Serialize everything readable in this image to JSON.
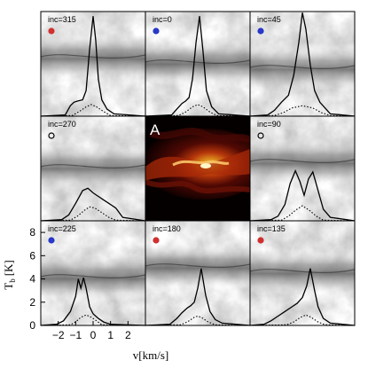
{
  "figure": {
    "center_panel_label": "A",
    "xlabel": "v[km/s]",
    "ylabel_main": "T",
    "ylabel_sub": "b",
    "ylabel_unit": "[K]"
  },
  "chart_data": {
    "type": "line",
    "grid": "3x3 panels of simulated spectra overlaid on column-density maps; center panel is a color map",
    "x_axis": {
      "label": "v[km/s]",
      "range": [
        -3,
        3
      ],
      "ticks": [
        -2,
        -1,
        0,
        1,
        2
      ]
    },
    "y_axis": {
      "label": "T_b [K]",
      "range": [
        0,
        9
      ],
      "ticks": [
        0,
        2,
        4,
        6,
        8
      ]
    },
    "marker_colors": {
      "red": "#d03030",
      "blue": "#2838c8",
      "open": "#000000"
    },
    "panels": [
      {
        "label": "inc=315",
        "row": 0,
        "col": 0,
        "marker": "red",
        "solid": {
          "v": [
            -3,
            -1.6,
            -1.3,
            -1.1,
            -0.9,
            -0.6,
            -0.4,
            -0.2,
            0.0,
            0.15,
            0.3,
            0.5,
            0.8,
            1.2,
            3
          ],
          "T": [
            0,
            0.1,
            0.9,
            1.2,
            1.3,
            1.4,
            2.2,
            5.8,
            8.6,
            6.5,
            3.2,
            1.4,
            0.6,
            0.2,
            0
          ]
        },
        "dotted": {
          "v": [
            -3,
            -1.2,
            -0.8,
            -0.4,
            -0.1,
            0.2,
            0.6,
            1.0,
            3
          ],
          "T": [
            0,
            0.05,
            0.4,
            0.8,
            1.0,
            0.8,
            0.4,
            0.05,
            0
          ]
        }
      },
      {
        "label": "inc=0",
        "row": 0,
        "col": 1,
        "marker": "blue",
        "solid": {
          "v": [
            -3,
            -1.5,
            -1.2,
            -0.9,
            -0.7,
            -0.5,
            -0.3,
            -0.1,
            0.1,
            0.3,
            0.5,
            0.8,
            1.2,
            3
          ],
          "T": [
            0,
            0.1,
            0.6,
            1.1,
            1.3,
            1.6,
            3.2,
            6.3,
            8.6,
            5.6,
            2.2,
            0.8,
            0.2,
            0
          ]
        },
        "dotted": {
          "v": [
            -3,
            -1.1,
            -0.7,
            -0.3,
            0.0,
            0.3,
            0.7,
            1.1,
            3
          ],
          "T": [
            0,
            0.05,
            0.35,
            0.8,
            1.0,
            0.8,
            0.35,
            0.05,
            0
          ]
        }
      },
      {
        "label": "inc=45",
        "row": 0,
        "col": 2,
        "marker": "blue",
        "solid": {
          "v": [
            -3,
            -2.0,
            -1.6,
            -1.2,
            -0.8,
            -0.5,
            -0.2,
            0.0,
            0.2,
            0.45,
            0.7,
            1.0,
            1.3,
            1.6,
            3
          ],
          "T": [
            0,
            0.1,
            0.5,
            1.2,
            1.8,
            3.5,
            6.4,
            8.9,
            7.5,
            4.4,
            2.2,
            1.2,
            0.7,
            0.2,
            0
          ]
        },
        "dotted": {
          "v": [
            -3,
            -1.6,
            -1.1,
            -0.6,
            0.0,
            0.6,
            1.1,
            1.6,
            3
          ],
          "T": [
            0,
            0.05,
            0.3,
            0.7,
            0.9,
            0.7,
            0.3,
            0.05,
            0
          ]
        }
      },
      {
        "label": "inc=270",
        "row": 1,
        "col": 0,
        "marker": "open",
        "solid": {
          "v": [
            -3,
            -1.8,
            -1.4,
            -1.0,
            -0.6,
            -0.3,
            0.0,
            0.3,
            0.6,
            0.9,
            1.3,
            1.7,
            3
          ],
          "T": [
            0,
            0.1,
            0.5,
            1.5,
            2.6,
            2.8,
            2.4,
            2.1,
            1.8,
            1.5,
            1.1,
            0.3,
            0
          ]
        },
        "dotted": {
          "v": [
            -3,
            -1.3,
            -0.9,
            -0.5,
            -0.2,
            0.1,
            0.5,
            0.9,
            1.3,
            3
          ],
          "T": [
            0,
            0.05,
            0.4,
            0.9,
            1.2,
            1.1,
            0.7,
            0.3,
            0.05,
            0
          ]
        }
      },
      {
        "label": "inc=90",
        "row": 1,
        "col": 2,
        "marker": "open",
        "solid": {
          "v": [
            -3,
            -1.8,
            -1.4,
            -1.0,
            -0.7,
            -0.4,
            -0.15,
            0.1,
            0.35,
            0.6,
            0.9,
            1.2,
            1.6,
            3
          ],
          "T": [
            0,
            0.1,
            0.4,
            1.4,
            3.2,
            4.3,
            3.4,
            2.2,
            3.6,
            4.2,
            2.6,
            1.0,
            0.3,
            0
          ]
        },
        "dotted": {
          "v": [
            -3,
            -1.2,
            -0.8,
            -0.4,
            0.0,
            0.4,
            0.8,
            1.2,
            3
          ],
          "T": [
            0,
            0.05,
            0.4,
            0.9,
            1.3,
            0.9,
            0.4,
            0.05,
            0
          ]
        }
      },
      {
        "label": "inc=225",
        "row": 2,
        "col": 0,
        "marker": "blue",
        "solid": {
          "v": [
            -3,
            -2.1,
            -1.7,
            -1.3,
            -1.0,
            -0.85,
            -0.7,
            -0.55,
            -0.4,
            -0.2,
            0.0,
            0.3,
            0.6,
            1.0,
            3
          ],
          "T": [
            0,
            0.1,
            0.4,
            1.2,
            2.5,
            4.0,
            3.2,
            4.1,
            3.2,
            1.6,
            1.0,
            0.6,
            0.3,
            0.1,
            0
          ]
        },
        "dotted": {
          "v": [
            -3,
            -1.3,
            -1.0,
            -0.7,
            -0.4,
            -0.1,
            0.2,
            0.5,
            3
          ],
          "T": [
            0,
            0.05,
            0.3,
            0.7,
            0.9,
            0.7,
            0.4,
            0.05,
            0
          ]
        }
      },
      {
        "label": "inc=180",
        "row": 2,
        "col": 1,
        "marker": "red",
        "solid": {
          "v": [
            -3,
            -1.6,
            -1.2,
            -0.9,
            -0.6,
            -0.4,
            -0.2,
            0.0,
            0.2,
            0.45,
            0.7,
            1.0,
            1.4,
            3
          ],
          "T": [
            0,
            0.1,
            0.6,
            1.1,
            1.5,
            1.7,
            2.0,
            3.2,
            4.9,
            2.6,
            1.2,
            0.5,
            0.2,
            0
          ]
        },
        "dotted": {
          "v": [
            -3,
            -1.0,
            -0.6,
            -0.2,
            0.0,
            0.2,
            0.6,
            1.0,
            3
          ],
          "T": [
            0,
            0.05,
            0.3,
            0.7,
            0.8,
            0.7,
            0.3,
            0.05,
            0
          ]
        }
      },
      {
        "label": "inc=135",
        "row": 2,
        "col": 2,
        "marker": "red",
        "solid": {
          "v": [
            -3,
            -2.2,
            -1.8,
            -1.4,
            -1.0,
            -0.6,
            -0.3,
            0.0,
            0.25,
            0.45,
            0.7,
            0.9,
            1.2,
            1.6,
            3
          ],
          "T": [
            0,
            0.1,
            0.4,
            0.8,
            1.2,
            1.6,
            1.9,
            2.4,
            3.4,
            4.9,
            3.0,
            1.6,
            0.6,
            0.2,
            0
          ]
        },
        "dotted": {
          "v": [
            -3,
            -0.9,
            -0.5,
            -0.1,
            0.2,
            0.5,
            0.9,
            1.3,
            3
          ],
          "T": [
            0,
            0.05,
            0.3,
            0.7,
            0.9,
            0.7,
            0.3,
            0.05,
            0
          ]
        }
      }
    ]
  }
}
